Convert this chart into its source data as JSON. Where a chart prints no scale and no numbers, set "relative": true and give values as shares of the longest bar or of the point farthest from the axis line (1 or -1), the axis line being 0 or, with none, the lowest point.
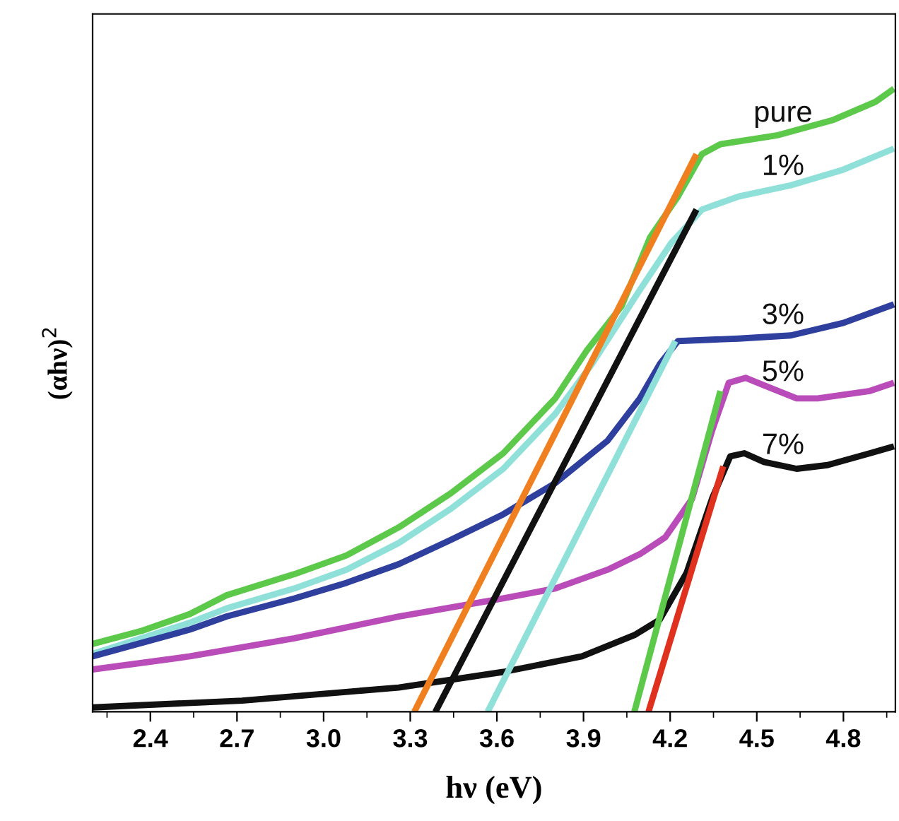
{
  "chart_data": {
    "type": "line",
    "relative": true,
    "xlabel": "hν (eV)",
    "ylabel": "(αhν)$^{2}$",
    "xlim": [
      2.2,
      4.98
    ],
    "xticks": [
      {
        "value": 2.25,
        "label": null
      },
      2.4,
      {
        "value": 2.55,
        "label": null
      },
      2.7,
      {
        "value": 2.85,
        "label": null
      },
      {
        "value": 3.0,
        "label": "3.0"
      },
      {
        "value": 3.15,
        "label": null
      },
      3.3,
      {
        "value": 3.45,
        "label": null
      },
      3.6,
      {
        "value": 3.75,
        "label": null
      },
      3.9,
      {
        "value": 4.05,
        "label": null
      },
      4.2,
      {
        "value": 4.35,
        "label": null
      },
      4.5,
      {
        "value": 4.65,
        "label": null
      },
      4.8,
      {
        "value": 4.95,
        "label": null
      }
    ],
    "grid": false,
    "legend": false,
    "line_style": "solid",
    "series": [
      {
        "name": "pure",
        "color": "#5cc94a",
        "x": [
          2.2,
          2.371,
          2.537,
          2.664,
          2.899,
          3.079,
          3.26,
          3.441,
          3.622,
          3.802,
          3.91,
          4.032,
          4.13,
          4.227,
          4.31,
          4.374,
          4.569,
          4.765,
          4.911,
          4.975
        ],
        "values": [
          0.109,
          0.13,
          0.157,
          0.187,
          0.221,
          0.251,
          0.296,
          0.351,
          0.415,
          0.503,
          0.579,
          0.651,
          0.761,
          0.827,
          0.895,
          0.911,
          0.925,
          0.95,
          0.979,
          1.0
        ]
      },
      {
        "name": "1%",
        "color": "#8ee0d8",
        "x": [
          2.2,
          2.537,
          2.664,
          2.899,
          3.079,
          3.26,
          3.441,
          3.622,
          3.802,
          3.929,
          4.095,
          4.203,
          4.31,
          4.437,
          4.618,
          4.799,
          4.975
        ],
        "values": [
          0.093,
          0.143,
          0.166,
          0.198,
          0.228,
          0.271,
          0.326,
          0.39,
          0.478,
          0.558,
          0.677,
          0.752,
          0.806,
          0.827,
          0.845,
          0.87,
          0.904
        ]
      },
      {
        "name": "3%",
        "color": "#2e3f9e",
        "x": [
          2.2,
          2.537,
          2.664,
          2.899,
          3.079,
          3.26,
          3.441,
          3.622,
          3.802,
          3.983,
          4.095,
          4.164,
          4.227,
          4.437,
          4.618,
          4.799,
          4.975
        ],
        "values": [
          0.089,
          0.132,
          0.153,
          0.182,
          0.207,
          0.237,
          0.276,
          0.317,
          0.367,
          0.435,
          0.503,
          0.558,
          0.595,
          0.599,
          0.604,
          0.624,
          0.654
        ]
      },
      {
        "name": "5%",
        "color": "#b94cb8",
        "x": [
          2.2,
          2.537,
          2.899,
          3.26,
          3.622,
          3.802,
          3.983,
          4.095,
          4.183,
          4.276,
          4.345,
          4.403,
          4.462,
          4.525,
          4.638,
          4.711,
          4.892,
          4.975
        ],
        "values": [
          0.068,
          0.089,
          0.118,
          0.153,
          0.182,
          0.198,
          0.228,
          0.253,
          0.28,
          0.342,
          0.451,
          0.528,
          0.536,
          0.524,
          0.503,
          0.503,
          0.515,
          0.528
        ]
      },
      {
        "name": "7%",
        "color": "#111111",
        "x": [
          2.2,
          2.718,
          3.26,
          3.622,
          3.895,
          4.076,
          4.164,
          4.257,
          4.345,
          4.408,
          4.457,
          4.525,
          4.638,
          4.745,
          4.892,
          4.975
        ],
        "values": [
          0.007,
          0.018,
          0.039,
          0.064,
          0.089,
          0.123,
          0.148,
          0.223,
          0.342,
          0.41,
          0.415,
          0.401,
          0.39,
          0.396,
          0.415,
          0.426
        ]
      },
      {
        "color": "#f07f1f",
        "x": [
          3.314,
          4.291
        ],
        "values": [
          0,
          0.895
        ]
      },
      {
        "color": "#111111",
        "x": [
          3.387,
          4.291
        ],
        "values": [
          0,
          0.806
        ]
      },
      {
        "color": "#8ee0d8",
        "x": [
          3.568,
          4.218
        ],
        "values": [
          0,
          0.595
        ]
      },
      {
        "color": "#5cc94a",
        "x": [
          4.076,
          4.374
        ],
        "values": [
          0,
          0.515
        ]
      },
      {
        "color": "#e0301e",
        "x": [
          4.125,
          4.384
        ],
        "values": [
          0,
          0.394
        ]
      }
    ]
  }
}
